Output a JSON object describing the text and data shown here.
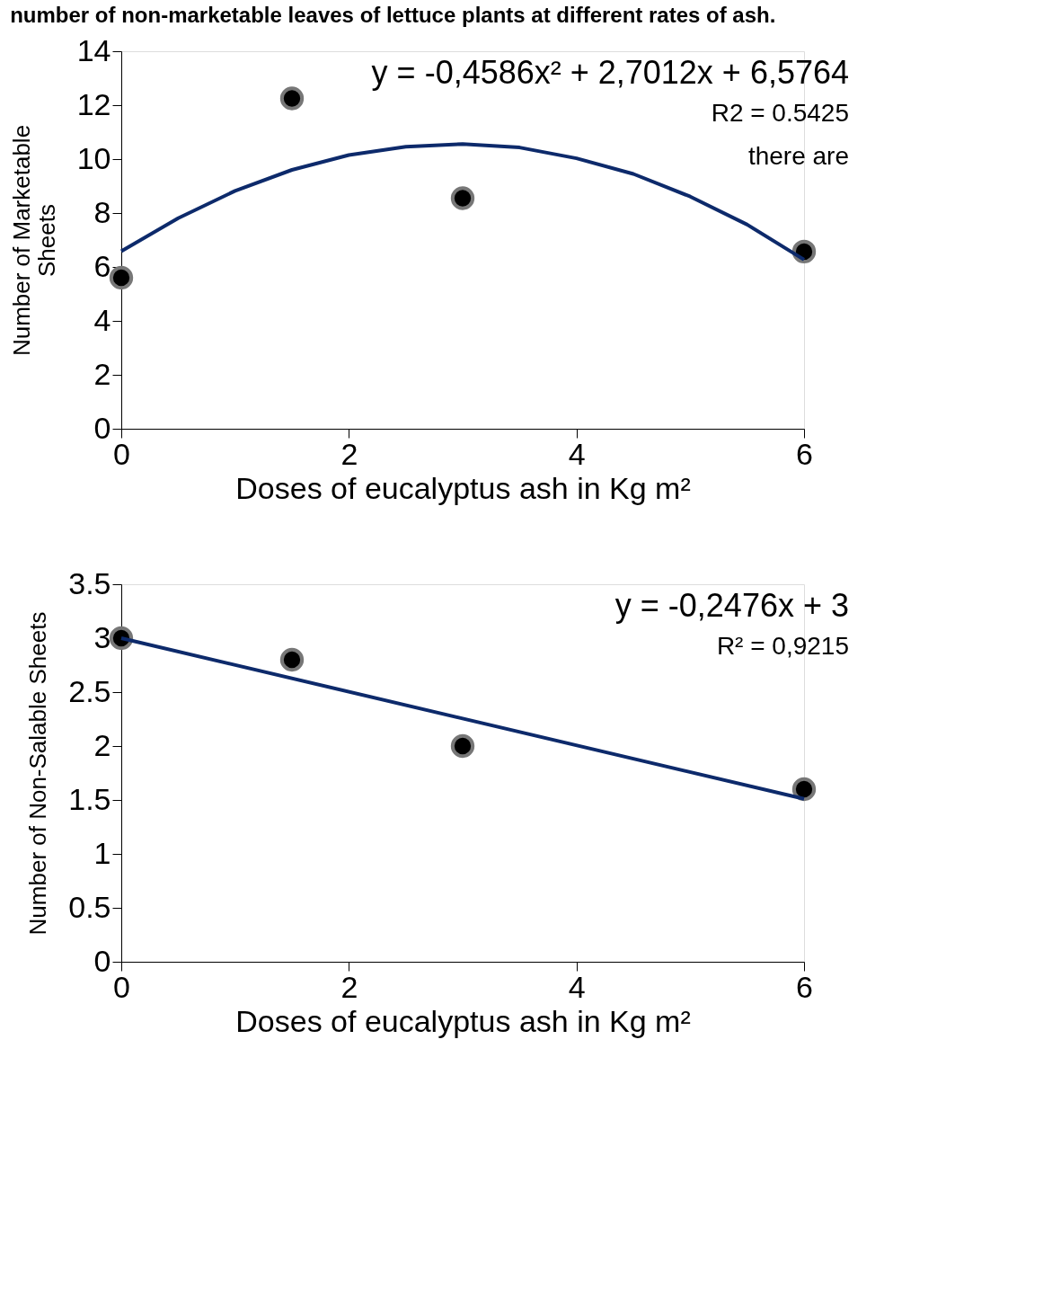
{
  "chart_data": [
    {
      "type": "scatter",
      "title": "number of non-marketable leaves of lettuce plants at different rates of ash.",
      "xlabel": "Doses of eucalyptus ash in Kg m²",
      "ylabel": "Number of Marketable\nSheets",
      "xlim": [
        0,
        6
      ],
      "xticks": [
        0,
        2,
        4,
        6
      ],
      "ylim": [
        0,
        14
      ],
      "yticks": [
        0,
        2,
        4,
        6,
        8,
        10,
        12,
        14
      ],
      "grid": false,
      "annotations": [
        "y = -0,4586x² + 2,7012x + 6,5764",
        "R2 = 0.5425",
        "there are"
      ],
      "series": [
        {
          "type": "scatter",
          "marker": "circle",
          "color": "#000000",
          "x": [
            0,
            1.5,
            3,
            6
          ],
          "values": [
            5.6,
            12.25,
            8.55,
            6.57
          ]
        },
        {
          "type": "line",
          "color": "#0d2a6b",
          "x": [
            0,
            0.5,
            1,
            1.5,
            2,
            2.5,
            3,
            3.5,
            4,
            4.5,
            5,
            5.5,
            6
          ],
          "values": [
            6.58,
            7.81,
            8.82,
            9.6,
            10.15,
            10.46,
            10.56,
            10.43,
            10.03,
            9.45,
            8.61,
            7.57,
            6.27
          ]
        }
      ]
    },
    {
      "type": "scatter",
      "xlabel": "Doses of eucalyptus ash in Kg m²",
      "ylabel": "Number of Non-Salable Sheets",
      "xlim": [
        0,
        6
      ],
      "xticks": [
        0,
        2,
        4,
        6
      ],
      "ylim": [
        0,
        3.5
      ],
      "yticks": [
        0,
        0.5,
        1,
        1.5,
        2,
        2.5,
        3,
        3.5
      ],
      "grid": false,
      "annotations": [
        "y = -0,2476x + 3",
        "R² = 0,9215"
      ],
      "series": [
        {
          "type": "scatter",
          "marker": "circle",
          "color": "#000000",
          "x": [
            0,
            1.5,
            3,
            6
          ],
          "values": [
            3.0,
            2.8,
            2.0,
            1.6
          ]
        },
        {
          "type": "line",
          "color": "#0d2a6b",
          "x": [
            0,
            6
          ],
          "values": [
            3.0,
            1.51
          ]
        }
      ]
    }
  ]
}
